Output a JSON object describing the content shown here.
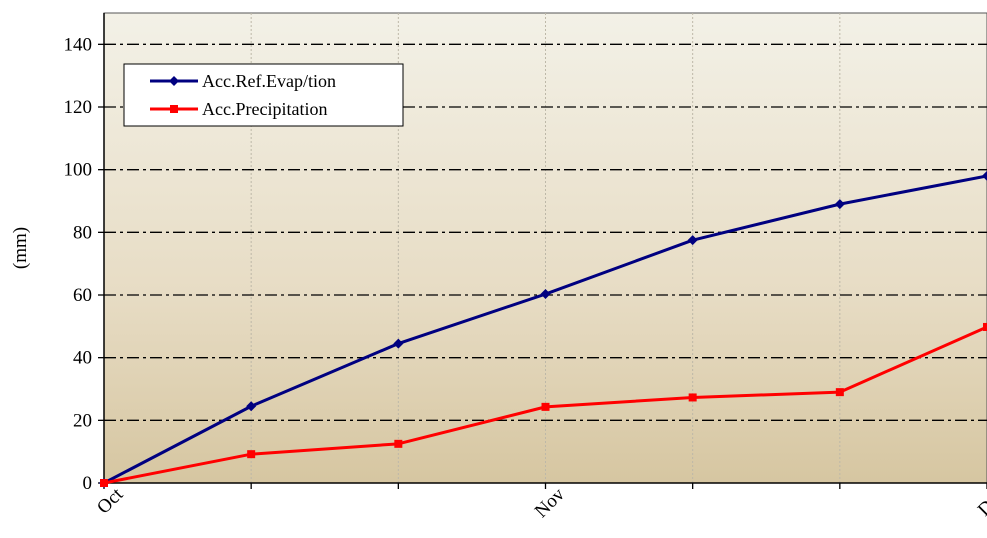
{
  "chart_data": {
    "type": "line",
    "x": [
      0,
      1,
      2,
      3,
      4,
      5,
      6
    ],
    "x_tick_labels": [
      "Oct",
      "",
      "",
      "Nov",
      "",
      "",
      "Dec"
    ],
    "ylabel": "(mm)",
    "ylim": [
      0,
      150
    ],
    "y_ticks": [
      0,
      20,
      40,
      60,
      80,
      100,
      120,
      140
    ],
    "grid": true,
    "legend_position": "top-left",
    "series": [
      {
        "name": "Acc.Ref.Evap/tion",
        "color": "#000080",
        "marker": "diamond",
        "values": [
          0,
          24.5,
          44.5,
          60.3,
          77.5,
          89,
          98
        ]
      },
      {
        "name": "Acc.Precipitation",
        "color": "#ff0000",
        "marker": "square",
        "values": [
          0,
          9.2,
          12.5,
          24.3,
          27.3,
          29,
          49.8
        ]
      }
    ]
  }
}
